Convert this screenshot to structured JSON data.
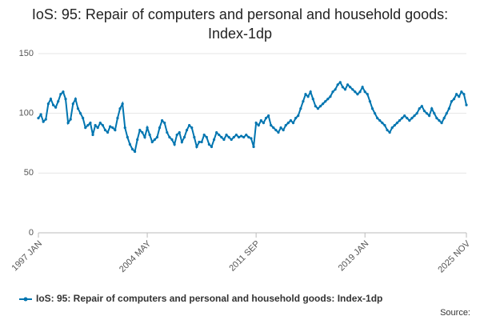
{
  "chart_data": {
    "type": "line",
    "title": "IoS: 95: Repair of computers and personal and household goods: Index-1dp",
    "source": "Source:",
    "x": [
      "1997 JAN",
      "1997 MAR",
      "1997 MAY",
      "1997 JUL",
      "1997 SEP",
      "1997 NOV",
      "1998 JAN",
      "1998 MAR",
      "1998 MAY",
      "1998 JUL",
      "1998 SEP",
      "1998 NOV",
      "1999 JAN",
      "1999 MAR",
      "1999 MAY",
      "1999 JUL",
      "1999 SEP",
      "1999 NOV",
      "2000 JAN",
      "2000 MAR",
      "2000 MAY",
      "2000 JUL",
      "2000 SEP",
      "2000 NOV",
      "2001 JAN",
      "2001 MAR",
      "2001 MAY",
      "2001 JUL",
      "2001 SEP",
      "2001 NOV",
      "2002 JAN",
      "2002 MAR",
      "2002 MAY",
      "2002 JUL",
      "2002 SEP",
      "2002 NOV",
      "2003 JAN",
      "2003 MAR",
      "2003 MAY",
      "2003 JUL",
      "2003 SEP",
      "2003 NOV",
      "2004 JAN",
      "2004 MAR",
      "2004 MAY",
      "2004 JUL",
      "2004 SEP",
      "2004 NOV",
      "2005 JAN",
      "2005 MAR",
      "2005 MAY",
      "2005 JUL",
      "2005 SEP",
      "2005 NOV",
      "2006 JAN",
      "2006 MAR",
      "2006 MAY",
      "2006 JUL",
      "2006 SEP",
      "2006 NOV",
      "2007 JAN",
      "2007 MAR",
      "2007 MAY",
      "2007 JUL",
      "2007 SEP",
      "2007 NOV",
      "2008 JAN",
      "2008 MAR",
      "2008 MAY",
      "2008 JUL",
      "2008 SEP",
      "2008 NOV",
      "2009 JAN",
      "2009 MAR",
      "2009 MAY",
      "2009 JUL",
      "2009 SEP",
      "2009 NOV",
      "2010 JAN",
      "2010 MAR",
      "2010 MAY",
      "2010 JUL",
      "2010 SEP",
      "2010 NOV",
      "2011 JAN",
      "2011 MAR",
      "2011 MAY",
      "2011 JUL",
      "2011 SEP",
      "2011 NOV",
      "2012 JAN",
      "2012 MAR",
      "2012 MAY",
      "2012 JUL",
      "2012 SEP",
      "2012 NOV",
      "2013 JAN",
      "2013 MAR",
      "2013 MAY",
      "2013 JUL",
      "2013 SEP",
      "2013 NOV",
      "2014 JAN",
      "2014 MAR",
      "2014 MAY",
      "2014 JUL",
      "2014 SEP",
      "2014 NOV",
      "2015 JAN",
      "2015 MAR",
      "2015 MAY",
      "2015 JUL",
      "2015 SEP",
      "2015 NOV",
      "2016 JAN",
      "2016 MAR",
      "2016 MAY",
      "2016 JUL",
      "2016 SEP",
      "2016 NOV",
      "2017 JAN",
      "2017 MAR",
      "2017 MAY",
      "2017 JUL",
      "2017 SEP",
      "2017 NOV",
      "2018 JAN",
      "2018 MAR",
      "2018 MAY",
      "2018 JUL",
      "2018 SEP",
      "2018 NOV",
      "2019 JAN",
      "2019 MAR",
      "2019 MAY",
      "2019 JUL",
      "2019 SEP",
      "2019 NOV",
      "2020 JAN",
      "2020 MAR",
      "2020 MAY",
      "2020 JUL",
      "2020 SEP",
      "2020 NOV",
      "2021 JAN",
      "2021 MAR",
      "2021 MAY",
      "2021 JUL",
      "2021 SEP",
      "2021 NOV",
      "2022 JAN",
      "2022 MAR",
      "2022 MAY",
      "2022 JUL",
      "2022 SEP",
      "2022 NOV",
      "2023 JAN",
      "2023 MAR",
      "2023 MAY",
      "2023 JUL",
      "2023 SEP",
      "2023 NOV",
      "2024 JAN",
      "2024 MAR",
      "2024 MAY",
      "2024 JUL",
      "2024 SEP",
      "2024 NOV",
      "2025 JAN",
      "2025 MAR",
      "2025 MAY",
      "2025 JUL",
      "2025 SEP",
      "2025 NOV"
    ],
    "xticks": [
      "1997 JAN",
      "2004 MAY",
      "2011 SEP",
      "2019 JAN",
      "2025 NOV"
    ],
    "series": [
      {
        "name": "IoS: 95: Repair of computers and personal and household goods: Index-1dp",
        "color": "#0075b0",
        "values": [
          96,
          99,
          93,
          95,
          108,
          112,
          107,
          105,
          110,
          116,
          118,
          112,
          92,
          95,
          108,
          112,
          104,
          100,
          96,
          88,
          90,
          92,
          82,
          90,
          88,
          92,
          90,
          86,
          84,
          89,
          88,
          86,
          96,
          104,
          108,
          88,
          80,
          74,
          70,
          68,
          78,
          86,
          84,
          80,
          88,
          82,
          76,
          78,
          80,
          88,
          94,
          92,
          84,
          80,
          78,
          74,
          82,
          84,
          76,
          80,
          86,
          90,
          88,
          80,
          72,
          76,
          76,
          82,
          80,
          74,
          72,
          78,
          84,
          82,
          80,
          78,
          82,
          80,
          78,
          80,
          82,
          80,
          81,
          80,
          82,
          80,
          79,
          72,
          92,
          90,
          94,
          92,
          96,
          98,
          90,
          88,
          86,
          84,
          88,
          86,
          90,
          92,
          94,
          92,
          96,
          98,
          104,
          110,
          116,
          114,
          118,
          112,
          106,
          104,
          106,
          108,
          110,
          112,
          114,
          118,
          120,
          124,
          126,
          122,
          120,
          124,
          122,
          120,
          118,
          116,
          118,
          122,
          118,
          116,
          110,
          104,
          100,
          96,
          94,
          92,
          90,
          86,
          84,
          88,
          90,
          92,
          94,
          96,
          98,
          96,
          94,
          96,
          98,
          100,
          104,
          106,
          102,
          100,
          98,
          104,
          100,
          96,
          94,
          92,
          96,
          100,
          104,
          110,
          112,
          116,
          114,
          118,
          116,
          107
        ]
      }
    ],
    "ylim": [
      0,
      150
    ],
    "yticks": [
      0,
      50,
      100,
      150
    ],
    "grid": true
  }
}
